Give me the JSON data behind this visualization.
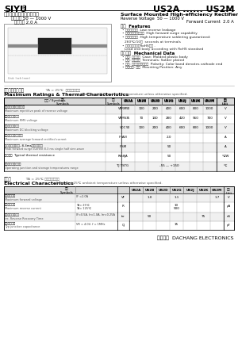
{
  "background": "#ffffff",
  "brand": "SIYU",
  "brand_reg": "®",
  "model": "US2A ...... US2M",
  "chinese_title": "表面安装高效率整流二极管",
  "chinese_voltage": "反向电压 50 — 1000 V",
  "chinese_current": "正向电流 2.0 A",
  "english_title": "Surface Mounted High-efficiency Rectifier",
  "english_voltage": "Reverse Voltage  50 — 1000 V",
  "english_current": "Forward Current  2.0 A",
  "features_header": "特性  Features",
  "features": [
    "反向漏电流小  Low reverse leakage",
    "正向涌流承受能力强  High forward surge capability",
    "高温尺度保证  High temperature soldering guaranteed:",
    "260℃/10秒  seconds at terminals",
    "引线和封装符合RoHS标准 .",
    "Lead and body according with RoHS standard"
  ],
  "mech_header": "机械数据  Mechanical Data",
  "mech_items": [
    "封装: 塑料封装  Case: Molded plastic body",
    "端子: 塑料封装  Terminals: Solder plated",
    "极性: 彩色环表示阴极端  Polarity: Color band denotes cathode end",
    "安装位置: 任意  Mounting Position: Any"
  ],
  "max_rating_header_cn": "极限值和温度特性",
  "max_rating_note_cn": "TA = 25℃  除非另有规定。",
  "max_rating_header_en": "Maximum Ratings & Thermal Characteristics",
  "max_rating_note_en": "Ratings at 25℃ ambient temperature unless otherwise specified.",
  "max_table_cols": [
    "US2A",
    "US2B",
    "US2D",
    "US2G",
    "US2J",
    "US2K",
    "US2M"
  ],
  "max_table_rows": [
    {
      "cn": "最大可重复峰値反向电压",
      "en": "Maximum repetitive peak of reverse voltage",
      "symbol": "VRRM",
      "values": [
        "50",
        "100",
        "200",
        "400",
        "600",
        "800",
        "1000"
      ],
      "unit": "V",
      "span": false
    },
    {
      "cn": "最大方向峰値电压",
      "en": "Maximum RMS voltage",
      "symbol": "VRMS",
      "values": [
        "35",
        "70",
        "140",
        "280",
        "420",
        "560",
        "700"
      ],
      "unit": "V",
      "span": false
    },
    {
      "cn": "最大直流阻断电压",
      "en": "Maximum DC blocking voltage",
      "symbol": "VDC",
      "values": [
        "50",
        "100",
        "200",
        "400",
        "600",
        "800",
        "1000"
      ],
      "unit": "V",
      "span": false
    },
    {
      "cn": "最大正向平均整流电流",
      "en": "Maximum average forward rectified current",
      "symbol": "IF(AV)",
      "values": [
        "2.0"
      ],
      "unit": "A",
      "span": true
    },
    {
      "cn": "峰山正向涌流电流, 8.3ms单一正弦半波",
      "en": "Peak forward surge current 8.3 ms single half sine-wave",
      "symbol": "IFSM",
      "values": [
        "50"
      ],
      "unit": "A",
      "span": true
    },
    {
      "cn": "典型热阻  Typical thermal resistance",
      "en": "",
      "symbol": "RthθJA",
      "values": [
        "50"
      ],
      "unit": "℃/W",
      "span": true
    },
    {
      "cn": "工作结点和存储温度",
      "en": "Operating junction and storage temperatures range",
      "symbol": "TJ TSTG",
      "values": [
        "-55 — +150"
      ],
      "unit": "℃",
      "span": true
    }
  ],
  "elec_header_cn": "电特性",
  "elec_note_cn": "TA = 25℃ 除非另有规定。",
  "elec_header_en": "Electrical Characteristics",
  "elec_note_en": "Ratings at 25℃ ambient temperature unless otherwise specified.",
  "elec_table_cols": [
    "US2A",
    "US2B",
    "US2D",
    "US2G",
    "US2J",
    "US2K",
    "US2M"
  ],
  "elec_table_rows": [
    {
      "cn": "最大正向电压",
      "en": "Maximum forward voltage",
      "cond": "IF =2.0A",
      "symbol": "VF",
      "values": [
        "1.0",
        "",
        "",
        "1.1",
        "",
        "",
        "1.7"
      ],
      "unit": "V",
      "span_mode": "group"
    },
    {
      "cn": "最大反向电流",
      "en": "Maximum reverse current",
      "cond": "TA= 25℃\nTA= 125℃",
      "symbol": "IR",
      "values": [
        "10",
        "500"
      ],
      "unit": "μA",
      "span": true
    },
    {
      "cn": "最大反向恢复时间",
      "en": "trr, Reverse Recovery Time",
      "cond": "IF=0.5A, Ir=1.0A, Irr=0.25A",
      "symbol": "trr",
      "values": [
        "50",
        "75"
      ],
      "unit": "nS",
      "span_mode": "group2"
    },
    {
      "cn": "典型结路电容",
      "en": "Typ junction capacitance",
      "cond": "VR = 4.0V, f = 1MHz",
      "symbol": "CJ",
      "values": [
        "15"
      ],
      "unit": "pF",
      "span": true
    }
  ],
  "footer_cn": "大昌电子",
  "footer_en": "DACHANG ELECTRONICS"
}
